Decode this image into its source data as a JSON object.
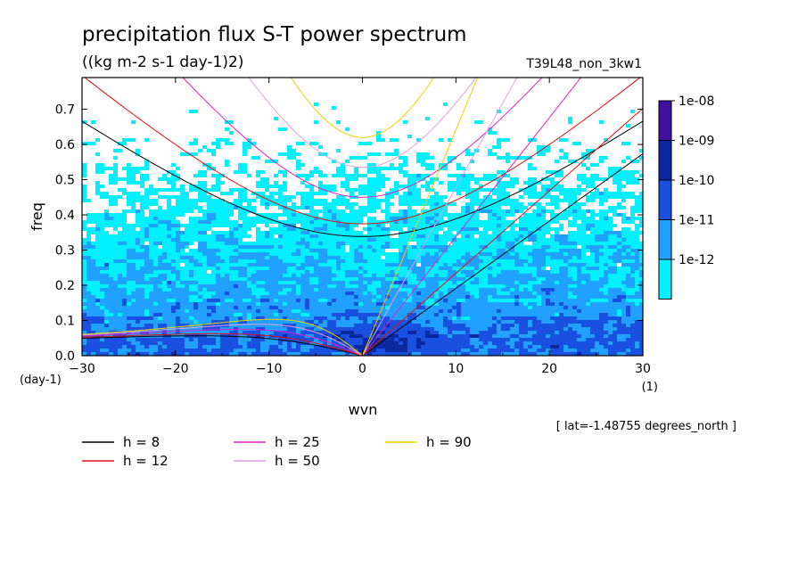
{
  "chart_data": {
    "type": "heatmap",
    "title": "precipitation flux S-T power spectrum",
    "subtitle": "((kg m-2 s-1 day-1)2)",
    "run_label": "T39L48_non_3kw1",
    "xlabel": "wvn",
    "ylabel": "freq",
    "x_unit": "(1)",
    "y_unit": "(day-1)",
    "xlim": [
      -30,
      30
    ],
    "ylim": [
      0,
      0.79
    ],
    "x_ticks": [
      -30,
      -20,
      -10,
      0,
      10,
      20,
      30
    ],
    "x_tick_labels": [
      "-30",
      "-20",
      "-10",
      "0",
      "10",
      "20",
      "30"
    ],
    "y_ticks": [
      0,
      0.1,
      0.2,
      0.3,
      0.4,
      0.5,
      0.6,
      0.7
    ],
    "y_tick_labels": [
      "0.0",
      "0.1",
      "0.2",
      "0.3",
      "0.4",
      "0.5",
      "0.6",
      "0.7"
    ],
    "footnote": "[ lat=-1.48755 degrees_north ]",
    "colorbar": {
      "labels": [
        "1e-08",
        "1e-09",
        "1e-10",
        "1e-11",
        "1e-12"
      ],
      "colors": [
        "#4010a0",
        "#0a28a0",
        "#1a50e0",
        "#20a0ff",
        "#00f0ff"
      ]
    },
    "field_colors": [
      "#ffffff",
      "#00f0ff",
      "#20a0ff",
      "#1a50e0",
      "#0a28a0"
    ],
    "dispersion_curves": [
      {
        "name": "h =  8",
        "h": 8,
        "color": "#000000"
      },
      {
        "name": "h = 12",
        "h": 12,
        "color": "#e01010"
      },
      {
        "name": "h = 25",
        "h": 25,
        "color": "#e020c0"
      },
      {
        "name": "h = 50",
        "h": 50,
        "color": "#e0a0e0"
      },
      {
        "name": "h = 90",
        "h": 90,
        "color": "#f0d000"
      }
    ]
  }
}
